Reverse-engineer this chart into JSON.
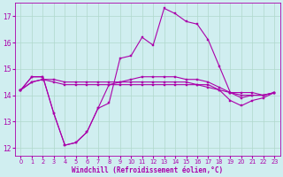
{
  "xlabel": "Windchill (Refroidissement éolien,°C)",
  "background_color": "#d0eef0",
  "grid_color": "#b0d8cc",
  "line_color": "#aa00aa",
  "ylim": [
    11.7,
    17.5
  ],
  "xlim": [
    -0.5,
    23.5
  ],
  "yticks": [
    12,
    13,
    14,
    15,
    16,
    17
  ],
  "xticks": [
    0,
    1,
    2,
    3,
    4,
    5,
    6,
    7,
    8,
    9,
    10,
    11,
    12,
    13,
    14,
    15,
    16,
    17,
    18,
    19,
    20,
    21,
    22,
    23
  ],
  "line1_x": [
    0,
    1,
    2,
    3,
    4,
    5,
    6,
    7,
    8,
    9,
    10,
    11,
    12,
    13,
    14,
    15,
    16,
    17,
    18,
    19,
    20,
    21,
    22,
    23
  ],
  "line1_y": [
    14.2,
    14.7,
    14.7,
    13.3,
    12.1,
    12.2,
    12.6,
    13.5,
    13.7,
    15.4,
    15.5,
    16.2,
    15.9,
    17.3,
    17.1,
    16.8,
    16.7,
    16.1,
    15.1,
    14.1,
    14.1,
    14.1,
    14.0,
    14.1
  ],
  "line2_x": [
    0,
    1,
    2,
    3,
    4,
    5,
    6,
    7,
    8,
    9,
    10,
    11,
    12,
    13,
    14,
    15,
    16,
    17,
    18,
    19,
    20,
    21,
    22,
    23
  ],
  "line2_y": [
    14.2,
    14.7,
    14.7,
    13.3,
    12.1,
    12.2,
    12.6,
    13.5,
    14.4,
    14.4,
    14.4,
    14.4,
    14.4,
    14.4,
    14.4,
    14.4,
    14.4,
    14.4,
    14.2,
    13.8,
    13.6,
    13.8,
    13.9,
    14.1
  ],
  "line3_x": [
    0,
    1,
    2,
    3,
    4,
    5,
    6,
    7,
    8,
    9,
    10,
    11,
    12,
    13,
    14,
    15,
    16,
    17,
    18,
    19,
    20,
    21,
    22,
    23
  ],
  "line3_y": [
    14.2,
    14.5,
    14.6,
    14.6,
    14.5,
    14.5,
    14.5,
    14.5,
    14.5,
    14.5,
    14.5,
    14.5,
    14.5,
    14.5,
    14.5,
    14.5,
    14.4,
    14.3,
    14.2,
    14.1,
    14.0,
    14.0,
    14.0,
    14.1
  ],
  "line4_x": [
    0,
    1,
    2,
    3,
    4,
    5,
    6,
    7,
    8,
    9,
    10,
    11,
    12,
    13,
    14,
    15,
    16,
    17,
    18,
    19,
    20,
    21,
    22,
    23
  ],
  "line4_y": [
    14.2,
    14.5,
    14.6,
    14.5,
    14.4,
    14.4,
    14.4,
    14.4,
    14.4,
    14.5,
    14.6,
    14.7,
    14.7,
    14.7,
    14.7,
    14.6,
    14.6,
    14.5,
    14.3,
    14.1,
    13.9,
    14.0,
    14.0,
    14.1
  ],
  "xtick_fontsize": 4.8,
  "ytick_fontsize": 5.5,
  "xlabel_fontsize": 5.5
}
